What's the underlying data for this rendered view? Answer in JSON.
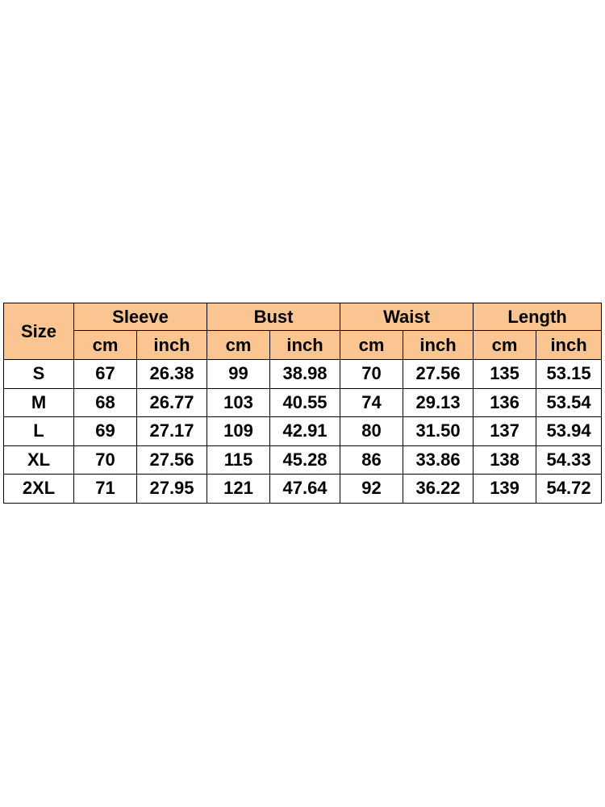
{
  "table": {
    "size_header": "Size",
    "groups": [
      "Sleeve",
      "Bust",
      "Waist",
      "Length"
    ],
    "unit_cm": "cm",
    "unit_inch": "inch",
    "rows": [
      [
        "S",
        "67",
        "26.38",
        "99",
        "38.98",
        "70",
        "27.56",
        "135",
        "53.15"
      ],
      [
        "M",
        "68",
        "26.77",
        "103",
        "40.55",
        "74",
        "29.13",
        "136",
        "53.54"
      ],
      [
        "L",
        "69",
        "27.17",
        "109",
        "42.91",
        "80",
        "31.50",
        "137",
        "53.94"
      ],
      [
        "XL",
        "70",
        "27.56",
        "115",
        "45.28",
        "86",
        "33.86",
        "138",
        "54.33"
      ],
      [
        "2XL",
        "71",
        "27.95",
        "121",
        "47.64",
        "92",
        "36.22",
        "139",
        "54.72"
      ]
    ]
  },
  "colors": {
    "header_fill": "#fbc591",
    "border": "#000000"
  }
}
